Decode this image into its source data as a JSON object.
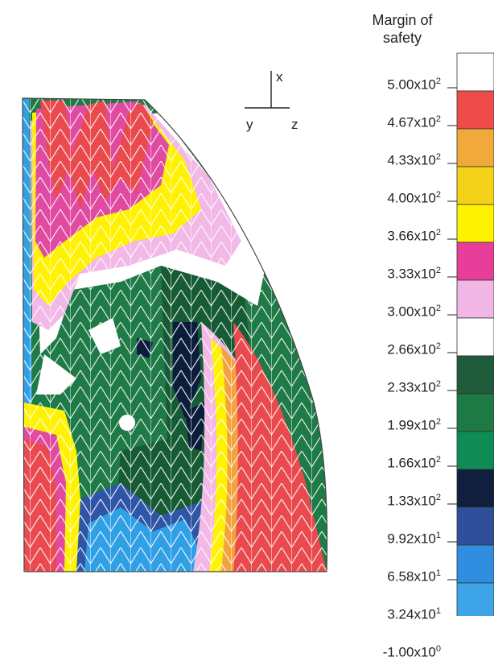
{
  "legend": {
    "title_line1": "Margin of",
    "title_line2": "safety",
    "entries": [
      {
        "mantissa": "5.00x10",
        "exp": "2"
      },
      {
        "mantissa": "4.67x10",
        "exp": "2"
      },
      {
        "mantissa": "4.33x10",
        "exp": "2"
      },
      {
        "mantissa": "4.00x10",
        "exp": "2"
      },
      {
        "mantissa": "3.66x10",
        "exp": "2"
      },
      {
        "mantissa": "3.33x10",
        "exp": "2"
      },
      {
        "mantissa": "3.00x10",
        "exp": "2"
      },
      {
        "mantissa": "2.66x10",
        "exp": "2"
      },
      {
        "mantissa": "2.33x10",
        "exp": "2"
      },
      {
        "mantissa": "1.99x10",
        "exp": "2"
      },
      {
        "mantissa": "1.66x10",
        "exp": "2"
      },
      {
        "mantissa": "1.33x10",
        "exp": "2"
      },
      {
        "mantissa": "9.92x10",
        "exp": "1"
      },
      {
        "mantissa": "6.58x10",
        "exp": "1"
      },
      {
        "mantissa": "3.24x10",
        "exp": "1"
      },
      {
        "mantissa": "-1.00x10",
        "exp": "0"
      }
    ],
    "swatch_colors": [
      "#ffffff",
      "#ee4b4b",
      "#f2a93b",
      "#f4d21a",
      "#fff200",
      "#e83e9a",
      "#f1b6e6",
      "#ffffff",
      "#1f5b3a",
      "#1d7a45",
      "#0f8c56",
      "#0f1f3d",
      "#2f4f9a",
      "#2f8ee0",
      "#3ea4e8",
      "#1b1b1b"
    ]
  },
  "axes": {
    "x": "x",
    "y": "y",
    "z": "z"
  },
  "colors": {
    "red": "#ea4a4d",
    "pink": "#e04aa1",
    "lightpink": "#f2b8e6",
    "yellow": "#fff200",
    "orange": "#f3a33d",
    "green": "#1e7a46",
    "darkgreen": "#175b35",
    "navy": "#0c1c3d",
    "blue": "#2e55a6",
    "lightblue": "#2fa0e6",
    "mesh": "#ffffff"
  }
}
